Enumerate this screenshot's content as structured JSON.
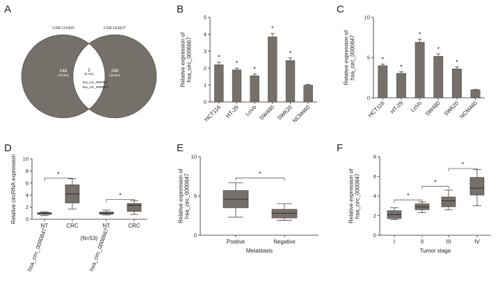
{
  "colors": {
    "fill": "#76706b",
    "axis": "#222222",
    "bracket": "#444444"
  },
  "panels": {
    "a": {
      "letter": "A"
    },
    "b": {
      "letter": "B"
    },
    "c": {
      "letter": "C"
    },
    "d": {
      "letter": "D"
    },
    "e": {
      "letter": "E"
    },
    "f": {
      "letter": "F"
    }
  },
  "chart_data": [
    {
      "panel": "A",
      "type": "venn",
      "sets": [
        {
          "name": "GSE121895",
          "only_count": "248",
          "only_pct": "(49.8%)"
        },
        {
          "name": "GSE142837",
          "only_count": "248",
          "only_pct": "(49.8%)"
        }
      ],
      "intersection": {
        "count": "2",
        "pct": "(0.4%)",
        "items": [
          "hsa_circ_0006667",
          "hsa_circ_0000847"
        ]
      }
    },
    {
      "panel": "B",
      "type": "bar",
      "ylabel": "Relative expression of\nhsa_circ_0006667",
      "ylim": [
        0,
        5
      ],
      "yticks": [
        0,
        1,
        2,
        3,
        4,
        5
      ],
      "categories": [
        "HCT116",
        "HT-29",
        "LoVo",
        "SW480",
        "SW620",
        "NCM460"
      ],
      "values": [
        2.2,
        1.9,
        1.55,
        3.85,
        2.45,
        1.0
      ],
      "errors": [
        0.15,
        0.1,
        0.1,
        0.2,
        0.15,
        0.05
      ],
      "significance": [
        "*",
        "*",
        "*",
        "*",
        "*",
        ""
      ]
    },
    {
      "panel": "C",
      "type": "bar",
      "ylabel": "Relative expression of\nhsa_circ_0000847",
      "ylim": [
        0,
        10
      ],
      "yticks": [
        0,
        5,
        10
      ],
      "categories": [
        "HCT116",
        "HT-29",
        "LoVo",
        "SW480",
        "SW620",
        "NCM460"
      ],
      "values": [
        4.0,
        3.05,
        6.9,
        5.15,
        3.6,
        1.0
      ],
      "errors": [
        0.2,
        0.2,
        0.4,
        0.3,
        0.25,
        0.05
      ],
      "significance": [
        "*",
        "*",
        "*",
        "*",
        "*",
        ""
      ]
    },
    {
      "panel": "D",
      "type": "boxplot",
      "ylabel": "Relative circRNA expression",
      "ylim": [
        0,
        10
      ],
      "yticks": [
        0,
        2,
        4,
        6,
        8,
        10
      ],
      "categories": [
        "NT",
        "CRC",
        "NT",
        "CRC"
      ],
      "groups": [
        "hsa_circ_0000847",
        "hsa_circ_0006667"
      ],
      "note": "(N=53)",
      "boxes": [
        {
          "min": 0.6,
          "q1": 0.8,
          "median": 1.0,
          "q3": 1.1,
          "max": 1.25
        },
        {
          "min": 1.7,
          "q1": 2.7,
          "median": 4.2,
          "q3": 5.7,
          "max": 6.7
        },
        {
          "min": 0.7,
          "q1": 0.85,
          "median": 1.0,
          "q3": 1.2,
          "max": 1.5
        },
        {
          "min": 0.8,
          "q1": 1.3,
          "median": 2.3,
          "q3": 2.6,
          "max": 3.1
        }
      ],
      "comparisons": [
        {
          "from": 0,
          "to": 1,
          "label": "*",
          "y": 6.8
        },
        {
          "from": 2,
          "to": 3,
          "label": "*",
          "y": 3.3
        }
      ]
    },
    {
      "panel": "E",
      "type": "boxplot",
      "ylabel": "Relative expression of\nhsa_circ_0000847",
      "xlabel": "Metastasis",
      "ylim": [
        0,
        10
      ],
      "yticks": [
        0,
        5,
        10
      ],
      "categories": [
        "Postive",
        "Negative"
      ],
      "boxes": [
        {
          "min": 2.3,
          "q1": 3.5,
          "median": 4.6,
          "q3": 5.7,
          "max": 6.7
        },
        {
          "min": 1.9,
          "q1": 2.2,
          "median": 2.8,
          "q3": 3.3,
          "max": 4.0
        }
      ],
      "comparisons": [
        {
          "from": 0,
          "to": 1,
          "label": "*",
          "y": 7.3
        }
      ]
    },
    {
      "panel": "F",
      "type": "boxplot",
      "ylabel": "Relative expression of\nhsa_circ_0000847",
      "xlabel": "Tumor stage",
      "ylim": [
        0,
        8
      ],
      "yticks": [
        0,
        2,
        4,
        6,
        8
      ],
      "categories": [
        "I",
        "II",
        "III",
        "IV"
      ],
      "boxes": [
        {
          "min": 1.6,
          "q1": 1.7,
          "median": 2.1,
          "q3": 2.5,
          "max": 2.8
        },
        {
          "min": 2.3,
          "q1": 2.6,
          "median": 2.9,
          "q3": 3.2,
          "max": 3.4
        },
        {
          "min": 2.6,
          "q1": 2.9,
          "median": 3.5,
          "q3": 3.9,
          "max": 4.6
        },
        {
          "min": 3.0,
          "q1": 4.1,
          "median": 4.8,
          "q3": 5.9,
          "max": 6.7
        }
      ],
      "comparisons": [
        {
          "from": 0,
          "to": 1,
          "label": "*",
          "y": 3.6
        },
        {
          "from": 1,
          "to": 2,
          "label": "*",
          "y": 5.0
        },
        {
          "from": 2,
          "to": 3,
          "label": "*",
          "y": 6.8
        }
      ]
    }
  ]
}
